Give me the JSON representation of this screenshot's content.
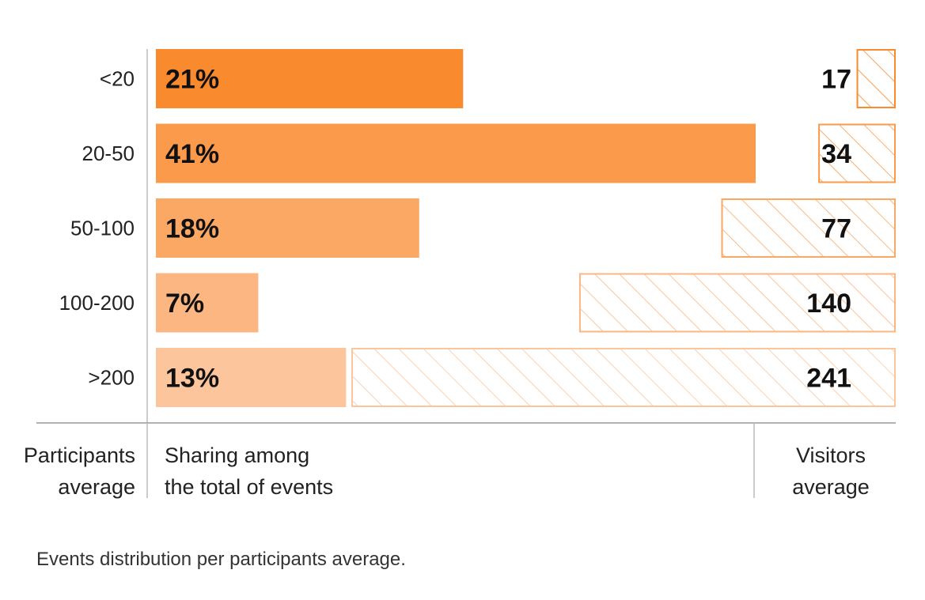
{
  "chart_data": {
    "type": "bar",
    "categories": [
      "<20",
      "20-50",
      "50-100",
      "100-200",
      ">200"
    ],
    "series": [
      {
        "name": "Sharing among the total of events",
        "values": [
          21,
          41,
          18,
          7,
          13
        ],
        "labels": [
          "21%",
          "41%",
          "18%",
          "7%",
          "13%"
        ],
        "colors": [
          "#f98b2e",
          "#fa9a4a",
          "#fba865",
          "#fcb681",
          "#fdc59c"
        ]
      },
      {
        "name": "Visitors average",
        "values": [
          17,
          34,
          77,
          140,
          241
        ],
        "labels": [
          "17",
          "34",
          "77",
          "140",
          "241"
        ],
        "colors": [
          "#f98b2e",
          "#fa9a4a",
          "#fba865",
          "#fcb681",
          "#fdc59c"
        ],
        "style": "hatched-outline"
      }
    ],
    "column_titles": {
      "participants": [
        "Participants",
        "average"
      ],
      "sharing": [
        "Sharing among",
        "the total of events"
      ],
      "visitors": [
        "Visitors",
        "average"
      ]
    },
    "caption": "Events distribution per participants average.",
    "share_max": 41,
    "visitors_max": 241
  }
}
